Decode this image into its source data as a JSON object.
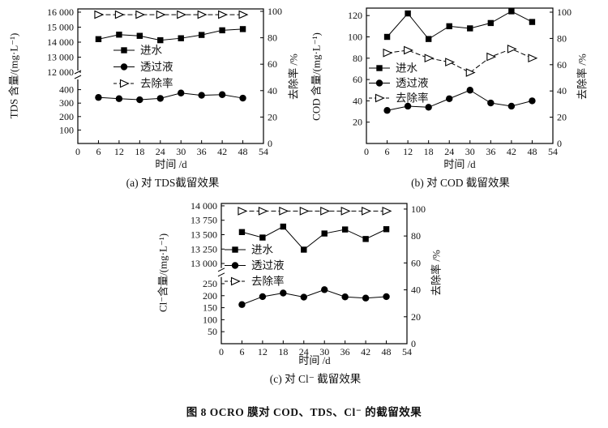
{
  "figure": {
    "title": "图 8  OCRO 膜对 COD、TDS、Cl⁻ 的截留效果"
  },
  "chart_data": [
    {
      "id": "a",
      "type": "line",
      "subcaption": "(a) 对 TDS截留效果",
      "xlabel": "时间 /d",
      "ylabel_left": "TDS 含量/(mg·L⁻¹)",
      "ylabel_right": "去除率 /%",
      "x_range": [
        0,
        54
      ],
      "x_ticks": [
        0,
        6,
        12,
        18,
        24,
        30,
        36,
        42,
        48,
        54
      ],
      "left_axis": {
        "broken": true,
        "break_frac": 0.512,
        "segments": [
          {
            "range": [
              0,
              400
            ],
            "frac": [
              0,
              0.4
            ]
          },
          {
            "range": [
              12000,
              16000
            ],
            "frac": [
              0.53,
              0.976
            ]
          }
        ],
        "ticks": [
          {
            "v": 100,
            "label": "100"
          },
          {
            "v": 200,
            "label": "200"
          },
          {
            "v": 300,
            "label": "300"
          },
          {
            "v": 400,
            "label": "400"
          },
          {
            "v": 12000,
            "label": "12 000"
          },
          {
            "v": 13000,
            "label": "13 000"
          },
          {
            "v": 14000,
            "label": "14 000"
          },
          {
            "v": 15000,
            "label": "15 000"
          },
          {
            "v": 16000,
            "label": "16 000"
          }
        ]
      },
      "right_axis": {
        "segments": [
          {
            "range": [
              0,
              100
            ],
            "frac": [
              0,
              0.982
            ]
          }
        ],
        "ticks": [
          {
            "v": 0,
            "label": "0"
          },
          {
            "v": 20,
            "label": "20"
          },
          {
            "v": 40,
            "label": "40"
          },
          {
            "v": 60,
            "label": "60"
          },
          {
            "v": 80,
            "label": "80"
          },
          {
            "v": 100,
            "label": "100"
          }
        ]
      },
      "x": [
        6,
        12,
        18,
        24,
        30,
        36,
        42,
        48
      ],
      "series": [
        {
          "name": "进水",
          "axis": "left",
          "marker": "square",
          "values": [
            14200,
            14500,
            14420,
            14130,
            14260,
            14480,
            14790,
            14870
          ]
        },
        {
          "name": "透过液",
          "axis": "left",
          "marker": "circle",
          "values": [
            342,
            333,
            325,
            335,
            375,
            358,
            363,
            337
          ]
        },
        {
          "name": "去除率",
          "axis": "right",
          "marker": "triangle",
          "dashed": true,
          "values": [
            97.5,
            97.5,
            97.5,
            97.5,
            97.5,
            97.5,
            97.5,
            97.5
          ]
        }
      ]
    },
    {
      "id": "b",
      "type": "line",
      "subcaption": "(b) 对 COD 截留效果",
      "xlabel": "时间 /d",
      "ylabel_left": "COD 含量/(mg·L⁻¹)",
      "ylabel_right": "去除率 /%",
      "x_range": [
        0,
        54
      ],
      "x_ticks": [
        0,
        6,
        12,
        18,
        24,
        30,
        36,
        42,
        48,
        54
      ],
      "left_axis": {
        "broken": false,
        "segments": [
          {
            "range": [
              0,
              127
            ],
            "frac": [
              0,
              1.0
            ]
          }
        ],
        "ticks": [
          {
            "v": 20,
            "label": "20"
          },
          {
            "v": 40,
            "label": "40"
          },
          {
            "v": 60,
            "label": "60"
          },
          {
            "v": 80,
            "label": "80"
          },
          {
            "v": 100,
            "label": "100"
          },
          {
            "v": 120,
            "label": "120"
          }
        ]
      },
      "right_axis": {
        "segments": [
          {
            "range": [
              0,
              100
            ],
            "frac": [
              0,
              0.97
            ]
          }
        ],
        "ticks": [
          {
            "v": 0,
            "label": "0"
          },
          {
            "v": 20,
            "label": "20"
          },
          {
            "v": 40,
            "label": "40"
          },
          {
            "v": 60,
            "label": "60"
          },
          {
            "v": 80,
            "label": "80"
          },
          {
            "v": 100,
            "label": "100"
          }
        ]
      },
      "x": [
        6,
        12,
        18,
        24,
        30,
        36,
        42,
        48
      ],
      "series": [
        {
          "name": "进水",
          "axis": "left",
          "marker": "square",
          "values": [
            100,
            122,
            98,
            110,
            108,
            113,
            124,
            114
          ]
        },
        {
          "name": "透过液",
          "axis": "left",
          "marker": "circle",
          "values": [
            31,
            35,
            34,
            42,
            50,
            38,
            35,
            40
          ]
        },
        {
          "name": "去除率",
          "axis": "right",
          "marker": "triangle",
          "dashed": true,
          "values": [
            69,
            71,
            65,
            62,
            54,
            66,
            72,
            65
          ]
        }
      ]
    },
    {
      "id": "c",
      "type": "line",
      "subcaption": "(c) 对 Cl⁻ 截留效果",
      "xlabel": "时间 /d",
      "ylabel_left": "Cl⁻含量/(mg·L⁻¹)",
      "ylabel_right": "去除率 /%",
      "x_range": [
        0,
        54
      ],
      "x_ticks": [
        0,
        6,
        12,
        18,
        24,
        30,
        36,
        42,
        48,
        54
      ],
      "left_axis": {
        "broken": true,
        "break_frac": 0.51,
        "segments": [
          {
            "range": [
              0,
              250
            ],
            "frac": [
              0,
              0.428
            ]
          },
          {
            "range": [
              13000,
              14000
            ],
            "frac": [
              0.572,
              0.983
            ]
          }
        ],
        "ticks": [
          {
            "v": 50,
            "label": "50"
          },
          {
            "v": 100,
            "label": "100"
          },
          {
            "v": 150,
            "label": "150"
          },
          {
            "v": 200,
            "label": "200"
          },
          {
            "v": 250,
            "label": "250"
          },
          {
            "v": 13000,
            "label": "13 000"
          },
          {
            "v": 13250,
            "label": "13 250"
          },
          {
            "v": 13500,
            "label": "13 500"
          },
          {
            "v": 13750,
            "label": "13 750"
          },
          {
            "v": 14000,
            "label": "14 000"
          }
        ]
      },
      "right_axis": {
        "segments": [
          {
            "range": [
              0,
              100
            ],
            "frac": [
              0,
              0.96
            ]
          }
        ],
        "ticks": [
          {
            "v": 0,
            "label": "0"
          },
          {
            "v": 20,
            "label": "20"
          },
          {
            "v": 40,
            "label": "40"
          },
          {
            "v": 60,
            "label": "60"
          },
          {
            "v": 80,
            "label": "80"
          },
          {
            "v": 100,
            "label": "100"
          }
        ]
      },
      "x": [
        6,
        12,
        18,
        24,
        30,
        36,
        42,
        48
      ],
      "series": [
        {
          "name": "进水",
          "axis": "left",
          "marker": "square",
          "values": [
            13545,
            13450,
            13640,
            13240,
            13520,
            13590,
            13425,
            13595
          ]
        },
        {
          "name": "透过液",
          "axis": "left",
          "marker": "circle",
          "values": [
            163,
            196,
            211,
            194,
            225,
            195,
            190,
            196
          ]
        },
        {
          "name": "去除率",
          "axis": "right",
          "marker": "triangle",
          "dashed": true,
          "values": [
            98.5,
            98.5,
            98.5,
            98.5,
            98.5,
            98.5,
            98.5,
            98.5
          ]
        }
      ]
    }
  ]
}
